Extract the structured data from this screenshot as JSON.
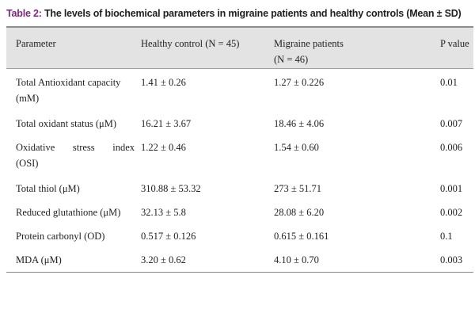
{
  "caption": {
    "label": "Table 2:",
    "text": "The levels of biochemical parameters in migraine patients and healthy controls (Mean ± SD)"
  },
  "table": {
    "headers": {
      "parameter": "Parameter",
      "healthy": "Healthy control (N = 45)",
      "migraine_line1": "Migraine patients",
      "migraine_line2": "(N = 46)",
      "pvalue": "P value"
    },
    "rows": [
      {
        "param_line1": "Total Antioxidant capacity",
        "param_line2": "(mM)",
        "healthy": "1.41 ± 0.26",
        "migraine": "1.27 ± 0.226",
        "p": "0.01"
      },
      {
        "param_line1": "Total oxidant status (μM)",
        "param_line2": "",
        "healthy": "16.21 ± 3.67",
        "migraine": "18.46 ± 4.06",
        "p": "0.007"
      },
      {
        "param_line1": "Oxidative stress index",
        "param_line2": "(OSI)",
        "healthy": "1.22 ± 0.46",
        "migraine": "1.54 ± 0.60",
        "p": "0.006"
      },
      {
        "param_line1": "Total thiol (μM)",
        "param_line2": "",
        "healthy": "310.88 ± 53.32",
        "migraine": "273 ± 51.71",
        "p": "0.001"
      },
      {
        "param_line1": "Reduced glutathione (μM)",
        "param_line2": "",
        "healthy": "32.13 ± 5.8",
        "migraine": "28.08 ± 6.20",
        "p": "0.002"
      },
      {
        "param_line1": "Protein carbonyl (OD)",
        "param_line2": "",
        "healthy": "0.517 ± 0.126",
        "migraine": "0.615 ± 0.161",
        "p": "0.1"
      },
      {
        "param_line1": "MDA (μM)",
        "param_line2": "",
        "healthy": "3.20 ± 0.62",
        "migraine": "4.10 ± 0.70",
        "p": "0.003"
      }
    ]
  }
}
